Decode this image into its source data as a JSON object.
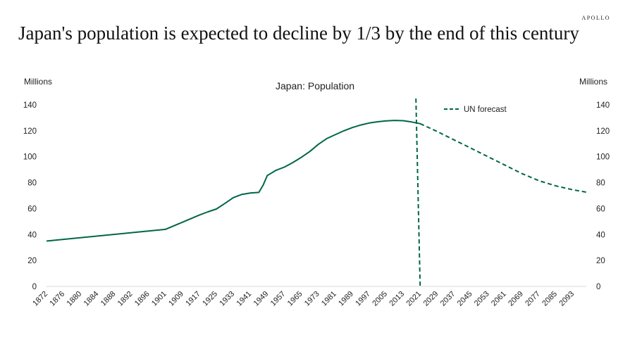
{
  "header": {
    "title": "Japan's population is expected to decline by 1/3 by the end of  this century",
    "logo": "APOLLO"
  },
  "chart_data": {
    "type": "line",
    "title": "Japan: Population",
    "ylabel_left": "Millions",
    "ylabel_right": "Millions",
    "ylim": [
      0,
      140
    ],
    "yticks": [
      0,
      20,
      40,
      60,
      80,
      100,
      120,
      140
    ],
    "xticks": [
      "1872",
      "1876",
      "1880",
      "1884",
      "1888",
      "1892",
      "1896",
      "1901",
      "1909",
      "1917",
      "1925",
      "1933",
      "1941",
      "1949",
      "1957",
      "1965",
      "1973",
      "1981",
      "1989",
      "1997",
      "2005",
      "2013",
      "2021",
      "2029",
      "2037",
      "2045",
      "2053",
      "2061",
      "2069",
      "2077",
      "2085",
      "2093"
    ],
    "legend": {
      "label": "UN forecast",
      "position": "top-right"
    },
    "color": "#00664a",
    "grid": false,
    "forecast_start_marker": 2021,
    "series": [
      {
        "style": "solid",
        "x": [
          1872,
          1901,
          1909,
          1917,
          1921,
          1925,
          1929,
          1933,
          1937,
          1941,
          1945,
          1947,
          1949,
          1953,
          1957,
          1961,
          1965,
          1969,
          1973,
          1977,
          1981,
          1985,
          1989,
          1993,
          1997,
          2001,
          2005,
          2009,
          2013,
          2017,
          2021
        ],
        "y": [
          35,
          44,
          49.5,
          55,
          57.5,
          59.7,
          64,
          68.5,
          71,
          72,
          72.5,
          78,
          85.5,
          89.5,
          92,
          95.5,
          99.5,
          104,
          109.5,
          114,
          117,
          120,
          122.5,
          124.5,
          126,
          127,
          127.7,
          128,
          127.8,
          126.8,
          125.5
        ]
      },
      {
        "name": "UN forecast",
        "style": "dashed",
        "x": [
          2021,
          2029,
          2037,
          2045,
          2053,
          2061,
          2069,
          2077,
          2085,
          2093,
          2100
        ],
        "y": [
          125.5,
          119.5,
          113,
          106.5,
          100,
          93.5,
          87,
          81.5,
          77.5,
          74.5,
          72.5
        ]
      }
    ]
  }
}
